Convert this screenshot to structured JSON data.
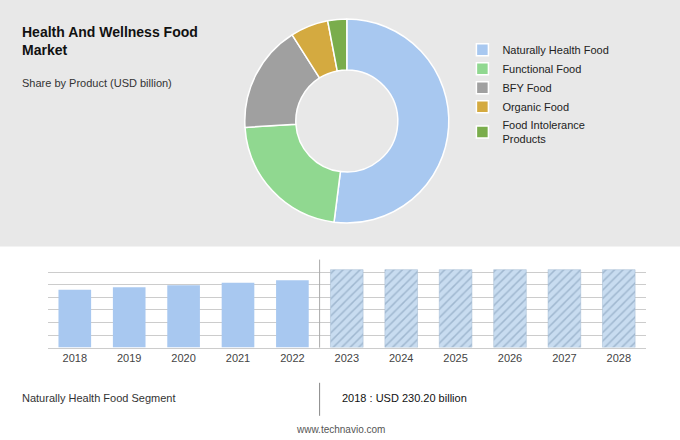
{
  "chart_data": [
    {
      "type": "pie",
      "title": "Health And Wellness Food\nMarket",
      "subtitle": "Share by Product (USD billion)",
      "categories": [
        "Naturally Health Food",
        "Functional Food",
        "BFY Food",
        "Organic Food",
        "Food Intolerance\nProducts"
      ],
      "values": [
        52,
        22,
        17,
        6,
        3
      ],
      "colors": [
        "#a8c8f0",
        "#90d890",
        "#a0a0a0",
        "#d4aa40",
        "#7aad4c"
      ],
      "legend": "right"
    },
    {
      "type": "bar",
      "x": [
        2018,
        2019,
        2020,
        2021,
        2022,
        2023,
        2024,
        2025,
        2026,
        2027,
        2028
      ],
      "series": [
        {
          "color": "#a8c8f0",
          "values": [
            230.2,
            240,
            248,
            258,
            268,
            null,
            null,
            null,
            null,
            null,
            null
          ]
        },
        {
          "color": "#c8dcf0",
          "marker": "hatched",
          "values": [
            null,
            null,
            null,
            null,
            null,
            310,
            310,
            310,
            310,
            310,
            310
          ]
        }
      ],
      "xlim": [
        2017.5,
        2028.5
      ],
      "xticks": [
        2018,
        2019,
        2020,
        2021,
        2022,
        2023,
        2024,
        2025,
        2026,
        2027,
        2028
      ],
      "ylim": [
        0,
        350
      ],
      "yticks": [
        0,
        50,
        100,
        150,
        200,
        250,
        300,
        350
      ],
      "grid": true,
      "tick_labels": "x",
      "annotations": [
        "Naturally Health Food Segment",
        "2018 : USD 230.20 billion",
        "www.technavio.com"
      ]
    }
  ]
}
